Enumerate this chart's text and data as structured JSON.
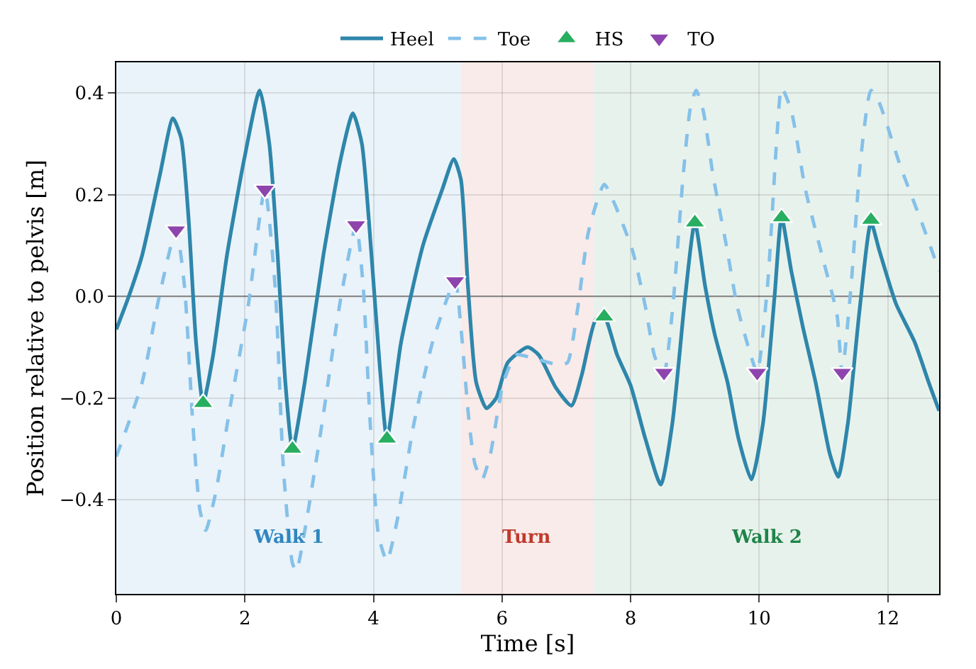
{
  "chart_data": {
    "type": "line",
    "xlabel": "Time [s]",
    "ylabel": "Position relative to pelvis [m]",
    "xlim": [
      0,
      12.8
    ],
    "ylim": [
      -0.585,
      0.46
    ],
    "xticks": [
      0,
      2,
      4,
      6,
      8,
      10,
      12
    ],
    "yticks": [
      {
        "value": -0.4,
        "label": "−0.4"
      },
      {
        "value": -0.2,
        "label": "−0.2"
      },
      {
        "value": 0,
        "label": "0.0"
      },
      {
        "value": 0.2,
        "label": "0.2"
      },
      {
        "value": 0.4,
        "label": "0.4"
      }
    ],
    "grid": true,
    "legend": "top",
    "series": [
      {
        "name": "Heel",
        "color": "#2e86ab",
        "line_style": "solid",
        "x": [
          0,
          0.18,
          0.4,
          0.68,
          0.88,
          1.01,
          1.12,
          1.24,
          1.35,
          1.5,
          1.72,
          1.99,
          2.23,
          2.38,
          2.51,
          2.63,
          2.74,
          2.93,
          3.22,
          3.49,
          3.68,
          3.82,
          3.97,
          4.1,
          4.21,
          4.43,
          4.77,
          5.07,
          5.25,
          5.36,
          5.47,
          5.6,
          5.76,
          5.91,
          6.09,
          6.4,
          6.57,
          6.84,
          7.08,
          7.24,
          7.46,
          7.59,
          7.79,
          8.0,
          8.23,
          8.47,
          8.65,
          8.85,
          9.0,
          9.16,
          9.31,
          9.51,
          9.68,
          9.88,
          10.06,
          10.24,
          10.35,
          10.5,
          10.68,
          10.88,
          11.1,
          11.23,
          11.38,
          11.56,
          11.74,
          11.87,
          12.13,
          12.42,
          12.64,
          12.8
        ],
        "values": [
          -0.065,
          -0.005,
          0.08,
          0.24,
          0.35,
          0.31,
          0.16,
          -0.09,
          -0.21,
          -0.12,
          0.08,
          0.27,
          0.405,
          0.3,
          0.08,
          -0.17,
          -0.3,
          -0.17,
          0.08,
          0.27,
          0.36,
          0.3,
          0.08,
          -0.14,
          -0.28,
          -0.09,
          0.1,
          0.21,
          0.27,
          0.23,
          0.02,
          -0.17,
          -0.22,
          -0.2,
          -0.13,
          -0.1,
          -0.115,
          -0.18,
          -0.215,
          -0.155,
          -0.045,
          -0.04,
          -0.115,
          -0.175,
          -0.28,
          -0.37,
          -0.25,
          0,
          0.145,
          0.02,
          -0.075,
          -0.17,
          -0.28,
          -0.36,
          -0.25,
          0,
          0.155,
          0.05,
          -0.06,
          -0.17,
          -0.31,
          -0.355,
          -0.25,
          -0.03,
          0.145,
          0.09,
          -0.015,
          -0.09,
          -0.17,
          -0.225
        ]
      },
      {
        "name": "Toe",
        "color": "#85c1e9",
        "line_style": "dashed",
        "x": [
          0,
          0.4,
          0.66,
          0.93,
          1.06,
          1.19,
          1.3,
          1.39,
          1.54,
          1.76,
          2.05,
          2.31,
          2.47,
          2.6,
          2.74,
          2.8,
          2.96,
          3.2,
          3.49,
          3.73,
          3.84,
          3.95,
          4.08,
          4.21,
          4.37,
          4.63,
          4.92,
          5.27,
          5.36,
          5.49,
          5.58,
          5.69,
          5.82,
          6.02,
          6.22,
          6.44,
          6.9,
          7.02,
          7.17,
          7.35,
          7.59,
          7.74,
          8.03,
          8.23,
          8.38,
          8.52,
          8.65,
          8.82,
          8.93,
          9.02,
          9.13,
          9.28,
          9.49,
          9.66,
          9.88,
          9.97,
          10.13,
          10.28,
          10.35,
          10.5,
          10.72,
          10.99,
          11.21,
          11.29,
          11.43,
          11.58,
          11.74,
          11.87,
          12.2,
          12.53,
          12.8
        ],
        "values": [
          -0.315,
          -0.17,
          -0.005,
          0.13,
          0.02,
          -0.25,
          -0.42,
          -0.46,
          -0.39,
          -0.225,
          -0.02,
          0.21,
          0.02,
          -0.34,
          -0.525,
          -0.54,
          -0.44,
          -0.25,
          -0.005,
          0.14,
          0.02,
          -0.25,
          -0.47,
          -0.52,
          -0.44,
          -0.25,
          -0.09,
          0.03,
          -0.06,
          -0.25,
          -0.33,
          -0.36,
          -0.31,
          -0.17,
          -0.115,
          -0.12,
          -0.135,
          -0.13,
          -0.03,
          0.13,
          0.22,
          0.185,
          0.09,
          -0.02,
          -0.12,
          -0.15,
          -0.03,
          0.24,
          0.37,
          0.405,
          0.365,
          0.24,
          0.1,
          -0.02,
          -0.12,
          -0.15,
          0.02,
          0.32,
          0.41,
          0.365,
          0.21,
          0.075,
          -0.035,
          -0.15,
          0.02,
          0.27,
          0.405,
          0.38,
          0.255,
          0.145,
          0.05
        ]
      },
      {
        "name": "HS",
        "type": "scatter",
        "color": "#27ae60",
        "marker": "triangle",
        "x": [
          1.35,
          2.74,
          4.21,
          7.59,
          9.0,
          10.35,
          11.74
        ],
        "values": [
          -0.21,
          -0.3,
          -0.28,
          -0.04,
          0.145,
          0.155,
          0.15
        ]
      },
      {
        "name": "TO",
        "type": "scatter",
        "color": "#8e44ad",
        "marker": "triangle-down",
        "x": [
          0.93,
          2.31,
          3.73,
          5.27,
          8.52,
          9.97,
          11.29
        ],
        "values": [
          0.13,
          0.21,
          0.14,
          0.03,
          -0.15,
          -0.15,
          -0.15
        ]
      }
    ],
    "ref_lines": [
      {
        "axis": "y",
        "value": 0,
        "color": "#999999"
      }
    ],
    "bands": [
      {
        "axis": "x",
        "from": 0,
        "to": 5.36,
        "label": "Walk 1",
        "color": "#2e86c1"
      },
      {
        "axis": "x",
        "from": 5.36,
        "to": 7.43,
        "label": "Turn",
        "color": "#c0392b"
      },
      {
        "axis": "x",
        "from": 7.43,
        "to": 12.8,
        "label": "Walk 2",
        "color": "#1e8449"
      }
    ]
  }
}
